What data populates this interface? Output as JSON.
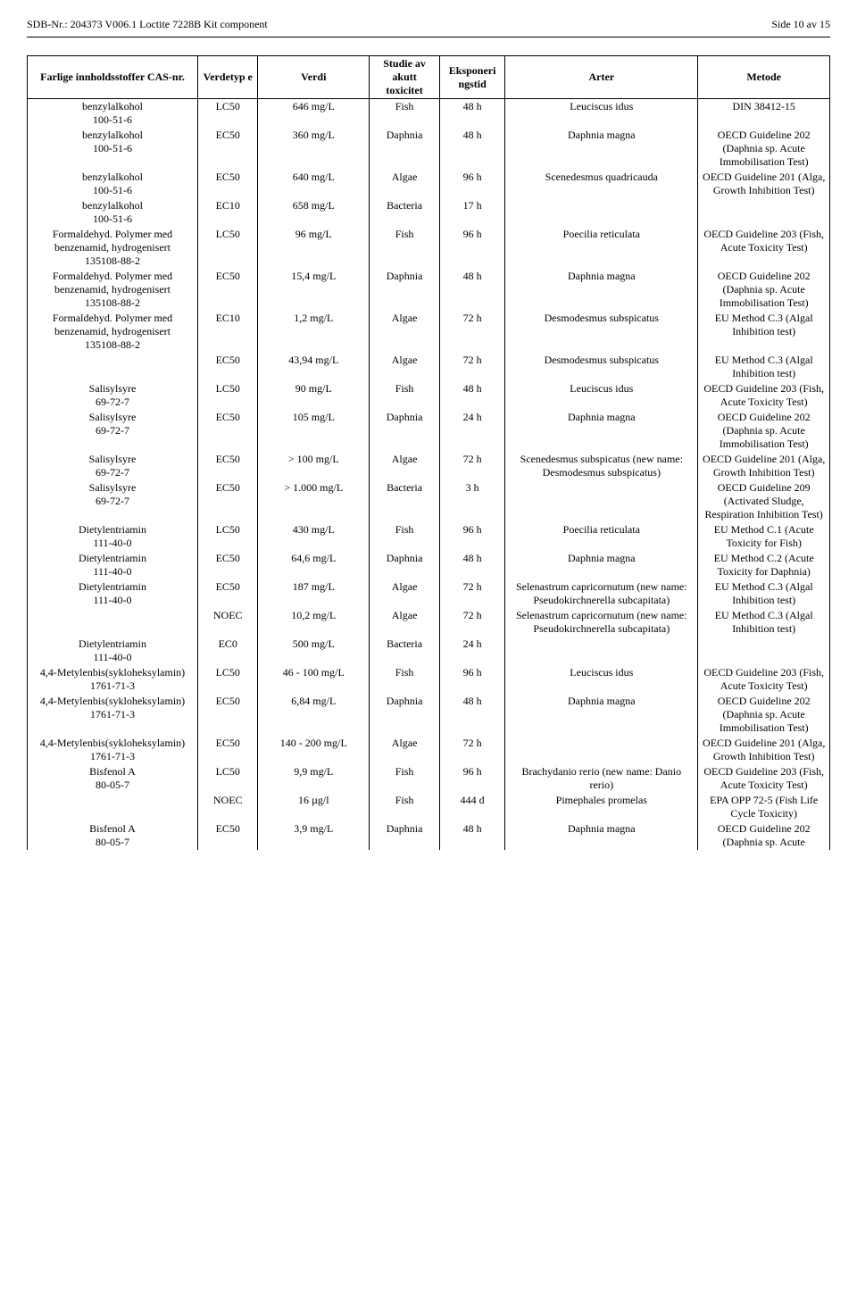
{
  "header": {
    "left": "SDB-Nr.: 204373   V006.1   Loctite 7228B Kit component",
    "right": "Side 10 av 15"
  },
  "columns": [
    "Farlige innholdsstoffer CAS-nr.",
    "Verdetyp e",
    "Verdi",
    "Studie av akutt toxicitet",
    "Eksponeri ngstid",
    "Arter",
    "Metode"
  ],
  "rows": [
    {
      "c1": "benzylalkohol\n100-51-6",
      "c2": "LC50",
      "c3": "646 mg/L",
      "c4": "Fish",
      "c5": "48 h",
      "c6": "Leuciscus idus",
      "c7": "DIN 38412-15"
    },
    {
      "c1": "benzylalkohol\n100-51-6",
      "c2": "EC50",
      "c3": "360 mg/L",
      "c4": "Daphnia",
      "c5": "48 h",
      "c6": "Daphnia magna",
      "c7": "OECD Guideline 202 (Daphnia sp. Acute Immobilisation Test)"
    },
    {
      "c1": "benzylalkohol\n100-51-6",
      "c2": "EC50",
      "c3": "640 mg/L",
      "c4": "Algae",
      "c5": "96 h",
      "c6": "Scenedesmus quadricauda",
      "c7": "OECD Guideline 201 (Alga, Growth Inhibition Test)"
    },
    {
      "c1": "benzylalkohol\n100-51-6",
      "c2": "EC10",
      "c3": "658 mg/L",
      "c4": "Bacteria",
      "c5": "17 h",
      "c6": "",
      "c7": ""
    },
    {
      "c1": "Formaldehyd. Polymer med benzenamid, hydrogenisert\n135108-88-2",
      "c2": "LC50",
      "c3": "96 mg/L",
      "c4": "Fish",
      "c5": "96 h",
      "c6": "Poecilia reticulata",
      "c7": "OECD Guideline 203 (Fish, Acute Toxicity Test)"
    },
    {
      "c1": "Formaldehyd. Polymer med benzenamid, hydrogenisert\n135108-88-2",
      "c2": "EC50",
      "c3": "15,4 mg/L",
      "c4": "Daphnia",
      "c5": "48 h",
      "c6": "Daphnia magna",
      "c7": "OECD Guideline 202 (Daphnia sp. Acute Immobilisation Test)"
    },
    {
      "c1": "Formaldehyd. Polymer med benzenamid, hydrogenisert\n135108-88-2",
      "c2": "EC10",
      "c3": "1,2 mg/L",
      "c4": "Algae",
      "c5": "72 h",
      "c6": "Desmodesmus subspicatus",
      "c7": "EU Method C.3 (Algal Inhibition test)"
    },
    {
      "c1": "",
      "c2": "EC50",
      "c3": "43,94 mg/L",
      "c4": "Algae",
      "c5": "72 h",
      "c6": "Desmodesmus subspicatus",
      "c7": "EU Method C.3 (Algal Inhibition test)"
    },
    {
      "c1": "Salisylsyre\n69-72-7",
      "c2": "LC50",
      "c3": "90 mg/L",
      "c4": "Fish",
      "c5": "48 h",
      "c6": "Leuciscus idus",
      "c7": "OECD Guideline 203 (Fish, Acute Toxicity Test)"
    },
    {
      "c1": "Salisylsyre\n69-72-7",
      "c2": "EC50",
      "c3": "105 mg/L",
      "c4": "Daphnia",
      "c5": "24 h",
      "c6": "Daphnia magna",
      "c7": "OECD Guideline 202 (Daphnia sp. Acute Immobilisation Test)"
    },
    {
      "c1": "Salisylsyre\n69-72-7",
      "c2": "EC50",
      "c3": "> 100 mg/L",
      "c4": "Algae",
      "c5": "72 h",
      "c6": "Scenedesmus subspicatus (new name: Desmodesmus subspicatus)",
      "c7": "OECD Guideline 201 (Alga, Growth Inhibition Test)"
    },
    {
      "c1": "Salisylsyre\n69-72-7",
      "c2": "EC50",
      "c3": "> 1.000 mg/L",
      "c4": "Bacteria",
      "c5": "3 h",
      "c6": "",
      "c7": "OECD Guideline 209 (Activated Sludge, Respiration Inhibition Test)"
    },
    {
      "c1": "Dietylentriamin\n111-40-0",
      "c2": "LC50",
      "c3": "430 mg/L",
      "c4": "Fish",
      "c5": "96 h",
      "c6": "Poecilia reticulata",
      "c7": "EU Method C.1 (Acute Toxicity for Fish)"
    },
    {
      "c1": "Dietylentriamin\n111-40-0",
      "c2": "EC50",
      "c3": "64,6 mg/L",
      "c4": "Daphnia",
      "c5": "48 h",
      "c6": "Daphnia magna",
      "c7": "EU Method C.2 (Acute Toxicity for Daphnia)"
    },
    {
      "c1": "Dietylentriamin\n111-40-0",
      "c2": "EC50",
      "c3": "187 mg/L",
      "c4": "Algae",
      "c5": "72 h",
      "c6": "Selenastrum capricornutum (new name: Pseudokirchnerella subcapitata)",
      "c7": "EU Method C.3 (Algal Inhibition test)"
    },
    {
      "c1": "",
      "c2": "NOEC",
      "c3": "10,2 mg/L",
      "c4": "Algae",
      "c5": "72 h",
      "c6": "Selenastrum capricornutum (new name: Pseudokirchnerella subcapitata)",
      "c7": "EU Method C.3 (Algal Inhibition test)"
    },
    {
      "c1": "Dietylentriamin\n111-40-0",
      "c2": "EC0",
      "c3": "500 mg/L",
      "c4": "Bacteria",
      "c5": "24 h",
      "c6": "",
      "c7": ""
    },
    {
      "c1": "4,4-Metylenbis(sykloheksylamin)\n1761-71-3",
      "c2": "LC50",
      "c3": "46 - 100 mg/L",
      "c4": "Fish",
      "c5": "96 h",
      "c6": "Leuciscus idus",
      "c7": "OECD Guideline 203 (Fish, Acute Toxicity Test)"
    },
    {
      "c1": "4,4-Metylenbis(sykloheksylamin)\n1761-71-3",
      "c2": "EC50",
      "c3": "6,84 mg/L",
      "c4": "Daphnia",
      "c5": "48 h",
      "c6": "Daphnia magna",
      "c7": "OECD Guideline 202 (Daphnia sp. Acute Immobilisation Test)"
    },
    {
      "c1": "4,4-Metylenbis(sykloheksylamin)\n1761-71-3",
      "c2": "EC50",
      "c3": "140 - 200 mg/L",
      "c4": "Algae",
      "c5": "72 h",
      "c6": "",
      "c7": "OECD Guideline 201 (Alga, Growth Inhibition Test)"
    },
    {
      "c1": "Bisfenol A\n80-05-7",
      "c2": "LC50",
      "c3": "9,9 mg/L",
      "c4": "Fish",
      "c5": "96 h",
      "c6": "Brachydanio rerio (new name: Danio rerio)",
      "c7": "OECD Guideline 203 (Fish, Acute Toxicity Test)"
    },
    {
      "c1": "",
      "c2": "NOEC",
      "c3": "16 µg/l",
      "c4": "Fish",
      "c5": "444 d",
      "c6": "Pimephales promelas",
      "c7": "EPA OPP 72-5 (Fish Life Cycle Toxicity)"
    },
    {
      "c1": "Bisfenol A\n80-05-7",
      "c2": "EC50",
      "c3": "3,9 mg/L",
      "c4": "Daphnia",
      "c5": "48 h",
      "c6": "Daphnia magna",
      "c7": "OECD Guideline 202 (Daphnia sp. Acute"
    }
  ]
}
